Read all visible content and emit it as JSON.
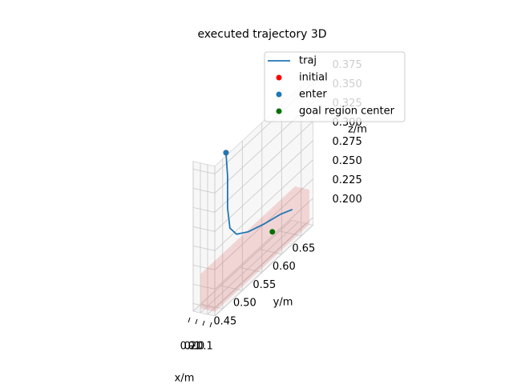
{
  "chart_data": {
    "type": "line3d",
    "title": "executed trajectory 3D",
    "xlabel": "x/m",
    "ylabel": "y/m",
    "zlabel": "z/m",
    "xlim": [
      -0.1,
      0.2
    ],
    "ylim": [
      0.43,
      0.68
    ],
    "zlim": [
      0.19,
      0.385
    ],
    "xticks": [
      {
        "value": -0.1,
        "label": "−0.1"
      },
      {
        "value": 0,
        "label": "0.0"
      },
      0.1,
      0.2
    ],
    "yticks": [
      0.45,
      {
        "value": 0.5,
        "label": "0.50"
      },
      0.55,
      {
        "value": 0.6,
        "label": "0.60"
      },
      0.65
    ],
    "zticks": [
      {
        "value": 0.2,
        "label": "0.200"
      },
      0.225,
      {
        "value": 0.25,
        "label": "0.250"
      },
      0.275,
      {
        "value": 0.3,
        "label": "0.300"
      },
      0.325,
      {
        "value": 0.35,
        "label": "0.350"
      },
      0.375
    ],
    "grid": true,
    "legend": "upper right",
    "goal_region": {
      "color": "#e06666",
      "xlim": [
        -0.05,
        0.15
      ],
      "ylim": [
        0.44,
        0.68
      ],
      "zlim": [
        0.19,
        0.235
      ]
    },
    "series": [
      {
        "name": "traj",
        "style": "line",
        "color": "#1f77b4",
        "x": [
          0.05,
          0.05,
          0.05,
          0.05,
          0.05,
          0.05,
          0.05,
          0.05,
          0.05
        ],
        "y": [
          0.486,
          0.49,
          0.49,
          0.496,
          0.513,
          0.543,
          0.584,
          0.625,
          0.655
        ],
        "z": [
          0.373,
          0.341,
          0.299,
          0.27,
          0.254,
          0.243,
          0.234,
          0.227,
          0.219
        ]
      },
      {
        "name": "initial",
        "style": "point",
        "color": "#ff0000",
        "x": [
          0.05
        ],
        "y": [
          0.486
        ],
        "z": [
          0.373
        ]
      },
      {
        "name": "enter",
        "style": "point",
        "color": "#1f77b4",
        "x": [
          0.05
        ],
        "y": [
          0.486
        ],
        "z": [
          0.373
        ]
      },
      {
        "name": "goal region center",
        "style": "point",
        "color": "#007000",
        "x": [
          0.05
        ],
        "y": [
          0.604
        ],
        "z": [
          0.214
        ]
      }
    ]
  }
}
